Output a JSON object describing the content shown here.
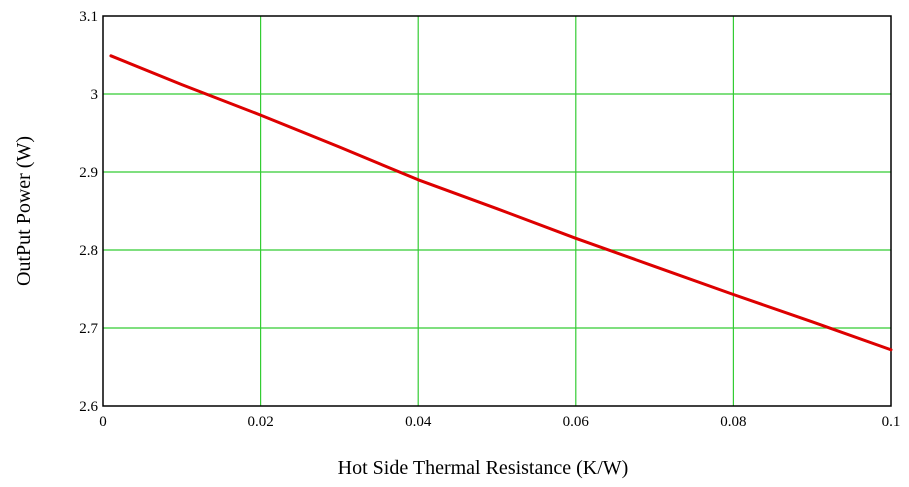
{
  "chart_data": {
    "type": "line",
    "title": "",
    "xlabel": "Hot Side Thermal Resistance (K/W)",
    "ylabel": "OutPut Power (W)",
    "xlim": [
      0,
      0.1
    ],
    "ylim": [
      2.6,
      3.1
    ],
    "x_ticks": [
      "0",
      "0.02",
      "0.04",
      "0.06",
      "0.08",
      "0.1"
    ],
    "y_ticks": [
      "2.6",
      "2.7",
      "2.8",
      "2.9",
      "3",
      "3.1"
    ],
    "grid": true,
    "grid_color": "#33cc33",
    "series": [
      {
        "color": "#dd0000",
        "x": [
          0.001,
          0.01,
          0.02,
          0.03,
          0.04,
          0.05,
          0.06,
          0.07,
          0.08,
          0.09,
          0.1
        ],
        "y": [
          3.049,
          3.012,
          2.973,
          2.932,
          2.89,
          2.853,
          2.815,
          2.779,
          2.743,
          2.708,
          2.672
        ]
      }
    ]
  }
}
